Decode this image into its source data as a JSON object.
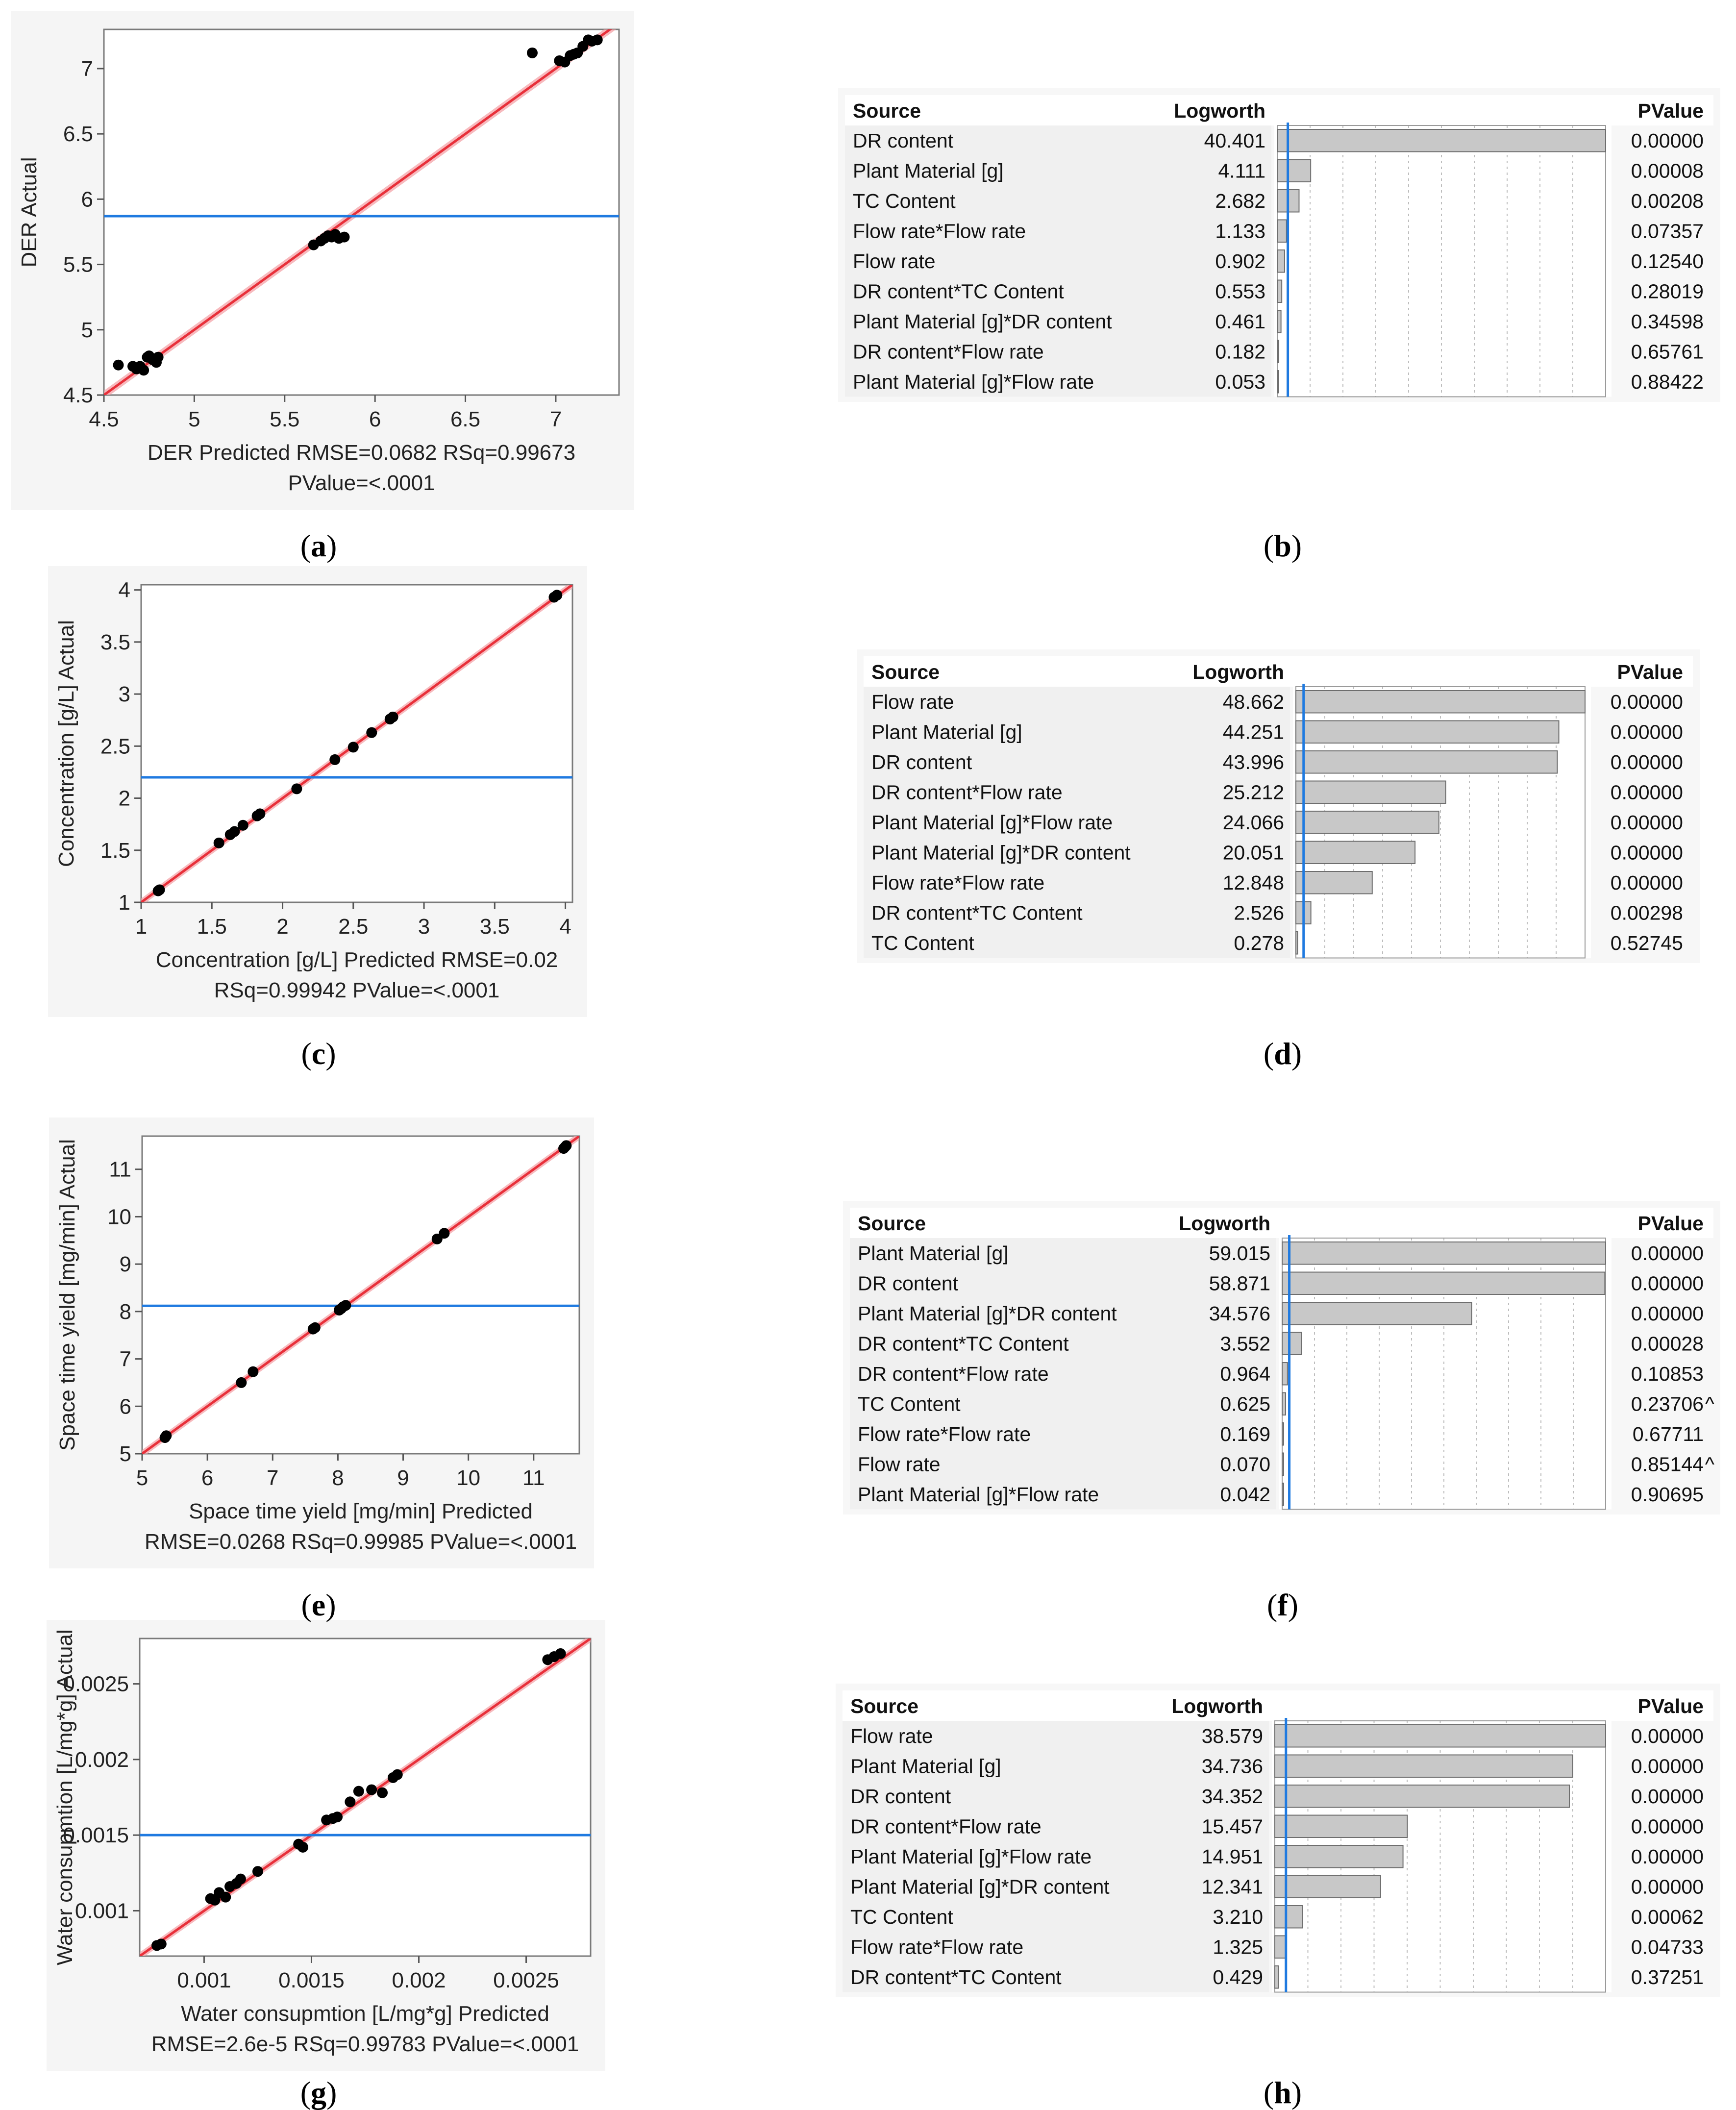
{
  "colors": {
    "fit_line": "#e8303a",
    "ci_band": "#f4a3a8",
    "mean_line": "#1f7ae0",
    "point": "#000000",
    "bar_fill": "#c8c8c8",
    "bar_stroke": "#6e6e6e",
    "cell_bg": "#f0f0f0",
    "plot_frame_bg": "#f5f5f5",
    "pvalue_line": "#1f7ae0"
  },
  "panel_labels": [
    {
      "id": "a",
      "letter": "a"
    },
    {
      "id": "b",
      "letter": "b"
    },
    {
      "id": "c",
      "letter": "c"
    },
    {
      "id": "d",
      "letter": "d"
    },
    {
      "id": "e",
      "letter": "e"
    },
    {
      "id": "f",
      "letter": "f"
    },
    {
      "id": "g",
      "letter": "g"
    },
    {
      "id": "h",
      "letter": "h"
    }
  ],
  "chart_data": [
    {
      "id": "a",
      "type": "scatter",
      "ylabel": "DER Actual",
      "xlabel_lines": [
        "DER Predicted RMSE=0.0682 RSq=0.99673",
        "PValue=<.0001"
      ],
      "xlim": [
        4.5,
        7.35
      ],
      "ylim": [
        4.5,
        7.3
      ],
      "xticks": [
        4.5,
        5,
        5.5,
        6,
        6.5,
        7
      ],
      "xtick_labels": [
        "4.5",
        "5",
        "5.5",
        "6",
        "6.5",
        "7"
      ],
      "yticks": [
        4.5,
        5,
        5.5,
        6,
        6.5,
        7
      ],
      "ytick_labels": [
        "4.5",
        "5",
        "5.5",
        "6",
        "6.5",
        "7"
      ],
      "mean_y": 5.87,
      "points": [
        [
          4.58,
          4.73
        ],
        [
          4.66,
          4.72
        ],
        [
          4.68,
          4.7
        ],
        [
          4.7,
          4.72
        ],
        [
          4.72,
          4.69
        ],
        [
          4.74,
          4.79
        ],
        [
          4.75,
          4.8
        ],
        [
          4.77,
          4.77
        ],
        [
          4.79,
          4.75
        ],
        [
          4.8,
          4.79
        ],
        [
          5.66,
          5.65
        ],
        [
          5.7,
          5.68
        ],
        [
          5.72,
          5.7
        ],
        [
          5.74,
          5.72
        ],
        [
          5.76,
          5.71
        ],
        [
          5.78,
          5.73
        ],
        [
          5.8,
          5.7
        ],
        [
          5.83,
          5.71
        ],
        [
          6.87,
          7.12
        ],
        [
          7.02,
          7.06
        ],
        [
          7.05,
          7.05
        ],
        [
          7.08,
          7.1
        ],
        [
          7.1,
          7.11
        ],
        [
          7.12,
          7.12
        ],
        [
          7.15,
          7.17
        ],
        [
          7.18,
          7.22
        ],
        [
          7.2,
          7.21
        ],
        [
          7.23,
          7.22
        ]
      ]
    },
    {
      "id": "b",
      "type": "bar",
      "headers": [
        "Source",
        "Logworth",
        "PValue"
      ],
      "bar_max": 40.401,
      "pvalue_line_at": 1.30103,
      "rows": [
        {
          "source": "DR content",
          "logworth": 40.401,
          "pvalue": "0.00000",
          "flag": ""
        },
        {
          "source": "Plant Material [g]",
          "logworth": 4.111,
          "pvalue": "0.00008",
          "flag": ""
        },
        {
          "source": "TC Content",
          "logworth": 2.682,
          "pvalue": "0.00208",
          "flag": ""
        },
        {
          "source": "Flow rate*Flow rate",
          "logworth": 1.133,
          "pvalue": "0.07357",
          "flag": ""
        },
        {
          "source": "Flow rate",
          "logworth": 0.902,
          "pvalue": "0.12540",
          "flag": ""
        },
        {
          "source": "DR content*TC Content",
          "logworth": 0.553,
          "pvalue": "0.28019",
          "flag": ""
        },
        {
          "source": "Plant Material [g]*DR content",
          "logworth": 0.461,
          "pvalue": "0.34598",
          "flag": ""
        },
        {
          "source": "DR content*Flow rate",
          "logworth": 0.182,
          "pvalue": "0.65761",
          "flag": ""
        },
        {
          "source": "Plant Material [g]*Flow rate",
          "logworth": 0.053,
          "pvalue": "0.88422",
          "flag": ""
        }
      ]
    },
    {
      "id": "c",
      "type": "scatter",
      "ylabel": "Concentration [g/L] Actual",
      "xlabel_lines": [
        "Concentration [g/L] Predicted RMSE=0.02",
        "RSq=0.99942 PValue=<.0001"
      ],
      "xlim": [
        1,
        4.05
      ],
      "ylim": [
        1,
        4.05
      ],
      "xticks": [
        1,
        1.5,
        2,
        2.5,
        3,
        3.5,
        4
      ],
      "xtick_labels": [
        "1",
        "1.5",
        "2",
        "2.5",
        "3",
        "3.5",
        "4"
      ],
      "yticks": [
        1,
        1.5,
        2,
        2.5,
        3,
        3.5,
        4
      ],
      "ytick_labels": [
        "1",
        "1.5",
        "2",
        "2.5",
        "3",
        "3.5",
        "4"
      ],
      "mean_y": 2.2,
      "points": [
        [
          1.12,
          1.11
        ],
        [
          1.13,
          1.12
        ],
        [
          1.55,
          1.57
        ],
        [
          1.63,
          1.65
        ],
        [
          1.66,
          1.68
        ],
        [
          1.72,
          1.74
        ],
        [
          1.82,
          1.83
        ],
        [
          1.84,
          1.85
        ],
        [
          2.1,
          2.09
        ],
        [
          2.37,
          2.37
        ],
        [
          2.5,
          2.49
        ],
        [
          2.63,
          2.63
        ],
        [
          2.76,
          2.76
        ],
        [
          2.78,
          2.78
        ],
        [
          3.92,
          3.93
        ],
        [
          3.94,
          3.95
        ]
      ]
    },
    {
      "id": "d",
      "type": "bar",
      "headers": [
        "Source",
        "Logworth",
        "PValue"
      ],
      "bar_max": 48.662,
      "pvalue_line_at": 1.30103,
      "rows": [
        {
          "source": "Flow rate",
          "logworth": 48.662,
          "pvalue": "0.00000",
          "flag": ""
        },
        {
          "source": "Plant Material [g]",
          "logworth": 44.251,
          "pvalue": "0.00000",
          "flag": ""
        },
        {
          "source": "DR content",
          "logworth": 43.996,
          "pvalue": "0.00000",
          "flag": ""
        },
        {
          "source": "DR content*Flow rate",
          "logworth": 25.212,
          "pvalue": "0.00000",
          "flag": ""
        },
        {
          "source": "Plant Material [g]*Flow rate",
          "logworth": 24.066,
          "pvalue": "0.00000",
          "flag": ""
        },
        {
          "source": "Plant Material [g]*DR content",
          "logworth": 20.051,
          "pvalue": "0.00000",
          "flag": ""
        },
        {
          "source": "Flow rate*Flow rate",
          "logworth": 12.848,
          "pvalue": "0.00000",
          "flag": ""
        },
        {
          "source": "DR content*TC Content",
          "logworth": 2.526,
          "pvalue": "0.00298",
          "flag": ""
        },
        {
          "source": "TC Content",
          "logworth": 0.278,
          "pvalue": "0.52745",
          "flag": ""
        }
      ]
    },
    {
      "id": "e",
      "type": "scatter",
      "ylabel": "Space time yield [mg/min] Actual",
      "xlabel_lines": [
        "Space time yield [mg/min] Predicted",
        "RMSE=0.0268 RSq=0.99985 PValue=<.0001"
      ],
      "xlim": [
        5,
        11.7
      ],
      "ylim": [
        5,
        11.7
      ],
      "xticks": [
        5,
        6,
        7,
        8,
        9,
        10,
        11
      ],
      "xtick_labels": [
        "5",
        "6",
        "7",
        "8",
        "9",
        "10",
        "11"
      ],
      "yticks": [
        5,
        6,
        7,
        8,
        9,
        10,
        11
      ],
      "ytick_labels": [
        "5",
        "6",
        "7",
        "8",
        "9",
        "10",
        "11"
      ],
      "mean_y": 8.12,
      "points": [
        [
          5.35,
          5.34
        ],
        [
          5.37,
          5.38
        ],
        [
          6.52,
          6.5
        ],
        [
          6.7,
          6.73
        ],
        [
          7.62,
          7.63
        ],
        [
          7.65,
          7.66
        ],
        [
          8.02,
          8.03
        ],
        [
          8.05,
          8.06
        ],
        [
          8.08,
          8.1
        ],
        [
          8.12,
          8.13
        ],
        [
          9.52,
          9.53
        ],
        [
          9.63,
          9.65
        ],
        [
          11.46,
          11.44
        ],
        [
          11.48,
          11.47
        ],
        [
          11.5,
          11.5
        ]
      ]
    },
    {
      "id": "f",
      "type": "bar",
      "headers": [
        "Source",
        "Logworth",
        "PValue"
      ],
      "bar_max": 59.015,
      "pvalue_line_at": 1.30103,
      "rows": [
        {
          "source": "Plant Material [g]",
          "logworth": 59.015,
          "pvalue": "0.00000",
          "flag": ""
        },
        {
          "source": "DR content",
          "logworth": 58.871,
          "pvalue": "0.00000",
          "flag": ""
        },
        {
          "source": "Plant Material [g]*DR content",
          "logworth": 34.576,
          "pvalue": "0.00000",
          "flag": ""
        },
        {
          "source": "DR content*TC Content",
          "logworth": 3.552,
          "pvalue": "0.00028",
          "flag": ""
        },
        {
          "source": "DR content*Flow rate",
          "logworth": 0.964,
          "pvalue": "0.10853",
          "flag": ""
        },
        {
          "source": "TC Content",
          "logworth": 0.625,
          "pvalue": "0.23706",
          "flag": "^"
        },
        {
          "source": "Flow rate*Flow rate",
          "logworth": 0.169,
          "pvalue": "0.67711",
          "flag": ""
        },
        {
          "source": "Flow rate",
          "logworth": 0.07,
          "pvalue": "0.85144",
          "flag": "^"
        },
        {
          "source": "Plant Material [g]*Flow rate",
          "logworth": 0.042,
          "pvalue": "0.90695",
          "flag": ""
        }
      ]
    },
    {
      "id": "g",
      "type": "scatter",
      "ylabel": "Water consupmtion [L/mg*g] Actual",
      "xlabel_lines": [
        "Water consupmtion [L/mg*g] Predicted",
        "RMSE=2.6e-5 RSq=0.99783 PValue=<.0001"
      ],
      "xlim": [
        0.0007,
        0.0028
      ],
      "ylim": [
        0.0007,
        0.0028
      ],
      "xticks": [
        0.001,
        0.0015,
        0.002,
        0.0025
      ],
      "xtick_labels": [
        "0.001",
        "0.0015",
        "0.002",
        "0.0025"
      ],
      "yticks": [
        0.001,
        0.0015,
        0.002,
        0.0025
      ],
      "ytick_labels": [
        "0.001",
        "0.0015",
        "0.002",
        "0.0025"
      ],
      "mean_y": 0.0015,
      "points": [
        [
          0.00078,
          0.00077
        ],
        [
          0.0008,
          0.00078
        ],
        [
          0.00103,
          0.00108
        ],
        [
          0.00105,
          0.00107
        ],
        [
          0.00107,
          0.00112
        ],
        [
          0.0011,
          0.00109
        ],
        [
          0.00112,
          0.00116
        ],
        [
          0.00115,
          0.00118
        ],
        [
          0.00117,
          0.00121
        ],
        [
          0.00125,
          0.00126
        ],
        [
          0.00144,
          0.00144
        ],
        [
          0.00146,
          0.00142
        ],
        [
          0.00157,
          0.0016
        ],
        [
          0.0016,
          0.00161
        ],
        [
          0.00162,
          0.00162
        ],
        [
          0.00168,
          0.00172
        ],
        [
          0.00172,
          0.00179
        ],
        [
          0.00178,
          0.0018
        ],
        [
          0.00183,
          0.00178
        ],
        [
          0.00188,
          0.00188
        ],
        [
          0.0019,
          0.0019
        ],
        [
          0.0026,
          0.00266
        ],
        [
          0.00263,
          0.00268
        ],
        [
          0.00266,
          0.0027
        ]
      ]
    },
    {
      "id": "h",
      "type": "bar",
      "headers": [
        "Source",
        "Logworth",
        "PValue"
      ],
      "bar_max": 38.579,
      "pvalue_line_at": 1.30103,
      "rows": [
        {
          "source": "Flow rate",
          "logworth": 38.579,
          "pvalue": "0.00000",
          "flag": ""
        },
        {
          "source": "Plant Material [g]",
          "logworth": 34.736,
          "pvalue": "0.00000",
          "flag": ""
        },
        {
          "source": "DR content",
          "logworth": 34.352,
          "pvalue": "0.00000",
          "flag": ""
        },
        {
          "source": "DR content*Flow rate",
          "logworth": 15.457,
          "pvalue": "0.00000",
          "flag": ""
        },
        {
          "source": "Plant Material [g]*Flow rate",
          "logworth": 14.951,
          "pvalue": "0.00000",
          "flag": ""
        },
        {
          "source": "Plant Material [g]*DR content",
          "logworth": 12.341,
          "pvalue": "0.00000",
          "flag": ""
        },
        {
          "source": "TC Content",
          "logworth": 3.21,
          "pvalue": "0.00062",
          "flag": ""
        },
        {
          "source": "Flow rate*Flow rate",
          "logworth": 1.325,
          "pvalue": "0.04733",
          "flag": ""
        },
        {
          "source": "DR content*TC Content",
          "logworth": 0.429,
          "pvalue": "0.37251",
          "flag": ""
        }
      ]
    }
  ]
}
